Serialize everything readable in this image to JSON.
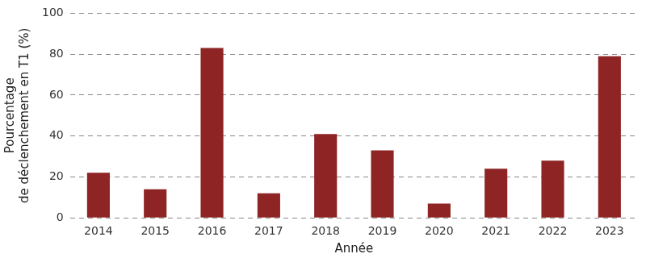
{
  "chart_data": {
    "type": "bar",
    "xlabel": "Année",
    "ylabel": [
      "Pourcentage",
      "de déclenchement en T1 (%)"
    ],
    "categories": [
      "2014",
      "2015",
      "2016",
      "2017",
      "2018",
      "2019",
      "2020",
      "2021",
      "2022",
      "2023"
    ],
    "values": [
      22,
      14,
      83,
      12,
      41,
      33,
      7,
      24,
      28,
      79
    ],
    "color": "#8e2424",
    "ylim": [
      0,
      100
    ],
    "yticks": [
      0,
      20,
      40,
      60,
      80,
      100
    ],
    "grid": true
  }
}
